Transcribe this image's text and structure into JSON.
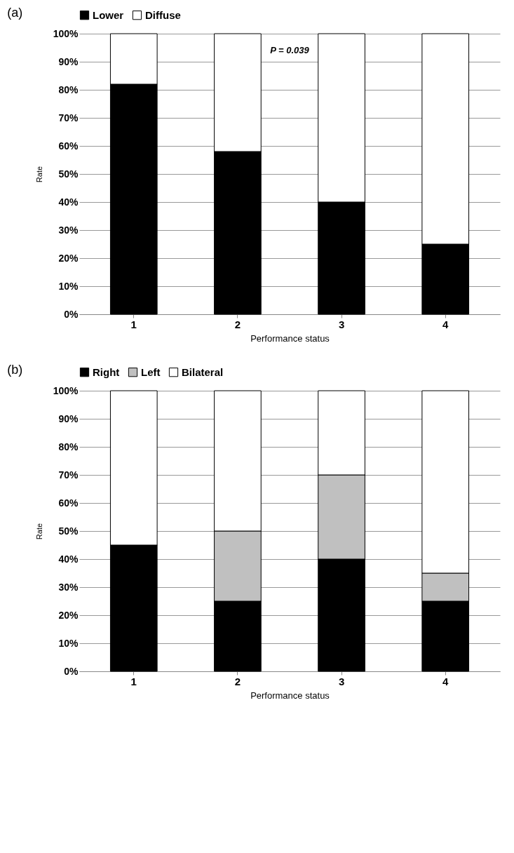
{
  "chart_data": [
    {
      "type": "bar",
      "title": "(a)",
      "stacked": true,
      "categories": [
        "1",
        "2",
        "3",
        "4"
      ],
      "xlabel": "Performance status",
      "ylabel": "Rate",
      "legend": "top",
      "grid": "y",
      "ylim": [
        0,
        100
      ],
      "yticks": [
        {
          "value": 0,
          "label": "0%"
        },
        {
          "value": 10,
          "label": "10%"
        },
        {
          "value": 20,
          "label": "20%"
        },
        {
          "value": 30,
          "label": "30%"
        },
        {
          "value": 40,
          "label": "40%"
        },
        {
          "value": 50,
          "label": "50%"
        },
        {
          "value": 60,
          "label": "60%"
        },
        {
          "value": 70,
          "label": "70%"
        },
        {
          "value": 80,
          "label": "80%"
        },
        {
          "value": 90,
          "label": "90%"
        },
        {
          "value": 100,
          "label": "100%"
        }
      ],
      "annotations": [
        "P = 0.039"
      ],
      "series": [
        {
          "name": "Lower",
          "color": "#000000",
          "values": [
            82,
            58,
            40,
            25
          ]
        },
        {
          "name": "Diffuse",
          "color": "#ffffff",
          "values": [
            18,
            42,
            60,
            75
          ]
        }
      ]
    },
    {
      "type": "bar",
      "title": "(b)",
      "stacked": true,
      "categories": [
        "1",
        "2",
        "3",
        "4"
      ],
      "xlabel": "Performance status",
      "ylabel": "Rate",
      "legend": "top",
      "grid": "y",
      "ylim": [
        0,
        100
      ],
      "yticks": [
        {
          "value": 0,
          "label": "0%"
        },
        {
          "value": 10,
          "label": "10%"
        },
        {
          "value": 20,
          "label": "20%"
        },
        {
          "value": 30,
          "label": "30%"
        },
        {
          "value": 40,
          "label": "40%"
        },
        {
          "value": 50,
          "label": "50%"
        },
        {
          "value": 60,
          "label": "60%"
        },
        {
          "value": 70,
          "label": "70%"
        },
        {
          "value": 80,
          "label": "80%"
        },
        {
          "value": 90,
          "label": "90%"
        },
        {
          "value": 100,
          "label": "100%"
        }
      ],
      "series": [
        {
          "name": "Right",
          "color": "#000000",
          "values": [
            45,
            25,
            40,
            25
          ]
        },
        {
          "name": "Left",
          "color": "#c0c0c0",
          "values": [
            0,
            25,
            30,
            10
          ]
        },
        {
          "name": "Bilateral",
          "color": "#ffffff",
          "values": [
            55,
            50,
            30,
            65
          ]
        }
      ]
    }
  ]
}
